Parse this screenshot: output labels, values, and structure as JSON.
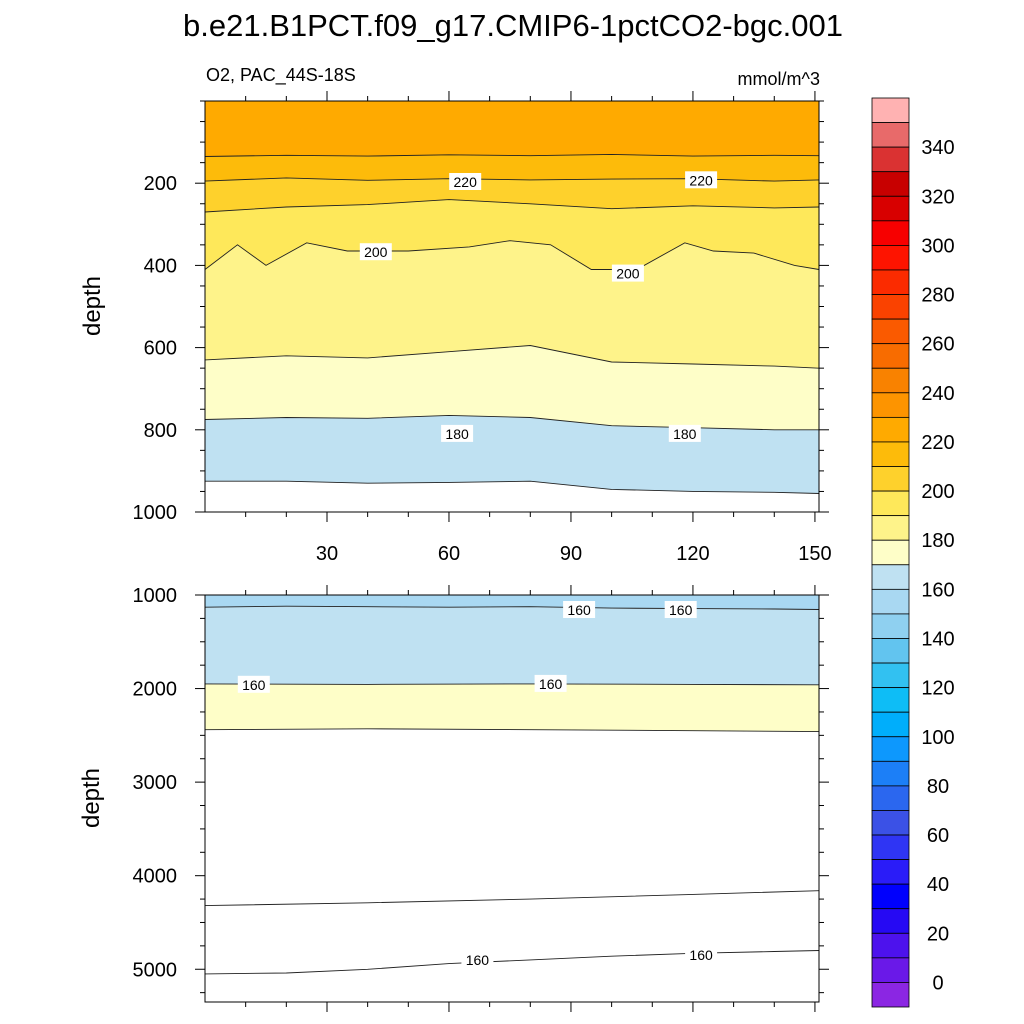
{
  "title": "b.e21.B1PCT.f09_g17.CMIP6-1pctCO2-bgc.001",
  "panel_left_label": "O2, PAC_44S-18S",
  "panel_right_label": "mmol/m^3",
  "colors": {
    "warm": [
      "#fefec8",
      "#fef38a",
      "#fee85a",
      "#fed12c",
      "#fdbb0a",
      "#ffaa00",
      "#fd9400",
      "#f98200",
      "#f86c00",
      "#fa5a00",
      "#fa4200",
      "#fb2b00",
      "#fe1400",
      "#f70000",
      "#d80000",
      "#c80000",
      "#da3232",
      "#e86a6a",
      "#ffb2b2"
    ],
    "cool": [
      "#bfe1f2",
      "#a9d8f2",
      "#8fd0f0",
      "#62c4ef",
      "#32c1f1",
      "#0ebdf6",
      "#00aefb",
      "#0d98fd",
      "#1c7ff7",
      "#2b67ef",
      "#3b51e6",
      "#2f35f4",
      "#2a1cf8",
      "#0000fd",
      "#2609f3",
      "#4d12ed",
      "#6a19e8",
      "#8b26e3"
    ]
  },
  "chart_data": [
    {
      "type": "contour",
      "name": "upper-panel",
      "title": "O2, PAC_44S-18S",
      "units": "mmol/m^3",
      "xlabel": "",
      "ylabel": "depth",
      "xlim": [
        0,
        151
      ],
      "ylim": [
        1000,
        0
      ],
      "xticks": [
        30,
        60,
        90,
        120,
        150
      ],
      "yticks": [
        200,
        400,
        600,
        800,
        1000
      ],
      "contour_labels": [
        {
          "text": "220",
          "x": 64,
          "y": 197
        },
        {
          "text": "220",
          "x": 122,
          "y": 193
        },
        {
          "text": "200",
          "x": 42,
          "y": 368
        },
        {
          "text": "200",
          "x": 104,
          "y": 420
        },
        {
          "text": "180",
          "x": 62,
          "y": 810
        },
        {
          "text": "180",
          "x": 118,
          "y": 810
        }
      ],
      "boundaries": [
        {
          "x": [
            0,
            20,
            40,
            60,
            80,
            100,
            120,
            140,
            151
          ],
          "y": [
            135,
            132,
            134,
            131,
            133,
            130,
            134,
            132,
            133
          ]
        },
        {
          "x": [
            0,
            20,
            40,
            60,
            80,
            100,
            120,
            140,
            151
          ],
          "y": [
            195,
            187,
            193,
            189,
            192,
            190,
            189,
            195,
            192
          ]
        },
        {
          "x": [
            0,
            20,
            40,
            60,
            80,
            100,
            120,
            140,
            151
          ],
          "y": [
            270,
            258,
            252,
            240,
            250,
            262,
            255,
            260,
            258
          ]
        },
        {
          "x": [
            0,
            8,
            15,
            25,
            35,
            50,
            65,
            75,
            85,
            95,
            100,
            108,
            118,
            125,
            135,
            145,
            151
          ],
          "y": [
            410,
            350,
            400,
            345,
            365,
            365,
            355,
            340,
            350,
            410,
            410,
            400,
            345,
            365,
            370,
            400,
            410
          ]
        },
        {
          "x": [
            0,
            20,
            40,
            60,
            80,
            100,
            120,
            140,
            151
          ],
          "y": [
            630,
            620,
            625,
            610,
            595,
            635,
            640,
            645,
            650
          ]
        },
        {
          "x": [
            0,
            20,
            40,
            60,
            80,
            100,
            120,
            140,
            151
          ],
          "y": [
            775,
            770,
            772,
            765,
            770,
            790,
            795,
            800,
            800
          ]
        },
        {
          "x": [
            0,
            20,
            40,
            60,
            80,
            100,
            120,
            140,
            151
          ],
          "y": [
            925,
            925,
            930,
            928,
            925,
            945,
            950,
            952,
            955
          ]
        }
      ],
      "bands": [
        {
          "value_range": [
            220,
            230
          ],
          "color": "#ffaa00"
        },
        {
          "value_range": [
            210,
            220
          ],
          "color": "#fdbb0a"
        },
        {
          "value_range": [
            200,
            210
          ],
          "color": "#fed12c"
        },
        {
          "value_range": [
            190,
            200
          ],
          "color": "#fee85a"
        },
        {
          "value_range": [
            180,
            190
          ],
          "color": "#fef38a"
        },
        {
          "value_range": [
            170,
            180
          ],
          "color": "#fefec8"
        },
        {
          "value_range": [
            160,
            170
          ],
          "color": "#bfe1f2"
        }
      ]
    },
    {
      "type": "contour",
      "name": "lower-panel",
      "xlabel": "",
      "ylabel": "depth",
      "xlim": [
        0,
        151
      ],
      "ylim": [
        5350,
        1000
      ],
      "xticks": [
        30,
        60,
        90,
        120,
        150
      ],
      "yticks": [
        1000,
        2000,
        3000,
        4000,
        5000
      ],
      "contour_labels": [
        {
          "text": "160",
          "x": 92,
          "y": 1160
        },
        {
          "text": "160",
          "x": 117,
          "y": 1160
        },
        {
          "text": "160",
          "x": 12,
          "y": 1960
        },
        {
          "text": "160",
          "x": 85,
          "y": 1950
        },
        {
          "text": "160",
          "x": 67,
          "y": 4900
        },
        {
          "text": "160",
          "x": 122,
          "y": 4850
        }
      ],
      "boundaries": [
        {
          "x": [
            0,
            20,
            40,
            60,
            80,
            100,
            120,
            140,
            151
          ],
          "y": [
            1130,
            1120,
            1125,
            1130,
            1125,
            1140,
            1145,
            1150,
            1155
          ]
        },
        {
          "x": [
            0,
            40,
            80,
            120,
            151
          ],
          "y": [
            1950,
            1955,
            1950,
            1955,
            1960
          ]
        },
        {
          "x": [
            0,
            40,
            80,
            120,
            151
          ],
          "y": [
            2440,
            2430,
            2440,
            2450,
            2460
          ]
        },
        {
          "x": [
            0,
            40,
            80,
            120,
            151
          ],
          "y": [
            4320,
            4290,
            4250,
            4200,
            4160
          ]
        },
        {
          "x": [
            0,
            20,
            40,
            60,
            80,
            100,
            120,
            140,
            151
          ],
          "y": [
            5050,
            5040,
            5000,
            4940,
            4900,
            4860,
            4830,
            4810,
            4800
          ]
        }
      ],
      "bands": [
        {
          "value_range": [
            150,
            160
          ],
          "color": "#a9d8f2"
        },
        {
          "value_range": [
            160,
            170
          ],
          "color": "#bfe1f2"
        },
        {
          "value_range": [
            170,
            180
          ],
          "color": "#fefec8"
        }
      ]
    }
  ],
  "colorbar": {
    "label_values": [
      "340",
      "320",
      "300",
      "280",
      "260",
      "240",
      "220",
      "200",
      "180",
      "160",
      "140",
      "120",
      "100",
      "80",
      "60",
      "40",
      "20",
      "0"
    ]
  }
}
